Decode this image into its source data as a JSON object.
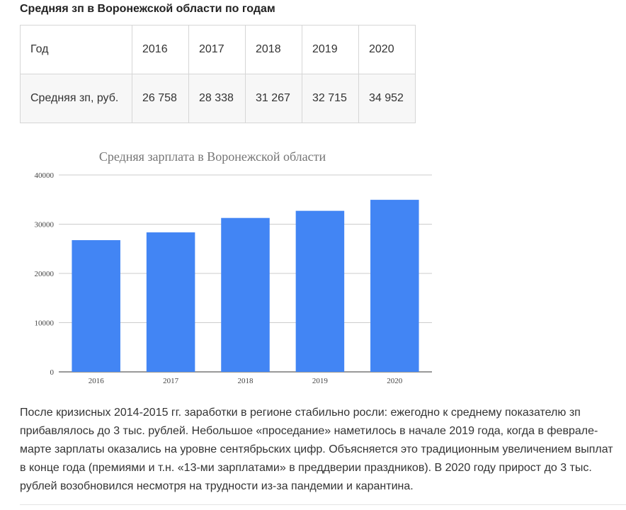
{
  "heading": "Средняя зп в Воронежской области по годам",
  "table": {
    "header": [
      "Год",
      "2016",
      "2017",
      "2018",
      "2019",
      "2020"
    ],
    "row": [
      "Средняя зп, руб.",
      "26 758",
      "28 338",
      "31 267",
      "32 715",
      "34 952"
    ]
  },
  "chart_data": {
    "type": "bar",
    "title": "Средняя зарплата в Воронежской области",
    "categories": [
      "2016",
      "2017",
      "2018",
      "2019",
      "2020"
    ],
    "values": [
      26758,
      28338,
      31267,
      32715,
      34952
    ],
    "xlabel": "",
    "ylabel": "",
    "ylim": [
      0,
      40000
    ],
    "yticks": [
      "0",
      "10000",
      "20000",
      "30000",
      "40000"
    ],
    "grid": true,
    "legend": "none",
    "bar_color": "#4285f4",
    "grid_color": "#cccccc"
  },
  "paragraph": "После кризисных 2014-2015 гг. заработки в регионе стабильно росли: ежегодно к среднему показателю зп прибавлялось до 3 тыс. рублей. Небольшое «проседание» наметилось в начале 2019 года, когда в феврале-марте зарплаты оказались на уровне сентябрьских цифр. Объясняется это традиционным увеличением выплат в конце года (премиями и т.н. «13-ми зарплатами» в преддверии праздников). В 2020 году прирост до 3 тыс. рублей возобновился несмотря на трудности из-за пандемии и карантина."
}
